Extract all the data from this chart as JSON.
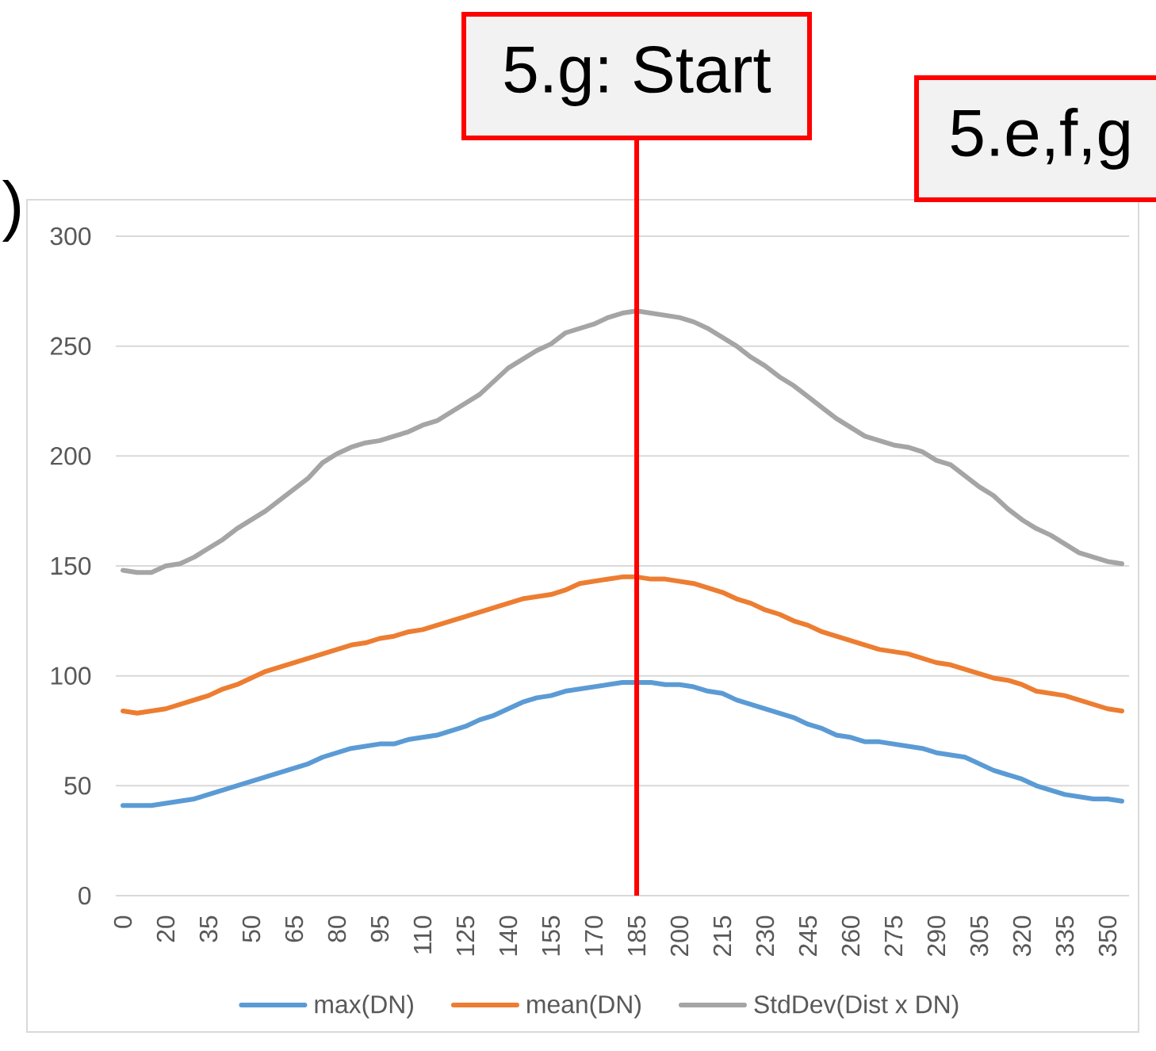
{
  "chart_data": {
    "type": "line",
    "categories": [
      "0",
      null,
      null,
      "20",
      null,
      null,
      "35",
      null,
      null,
      "50",
      null,
      null,
      "65",
      null,
      null,
      "80",
      null,
      null,
      "95",
      null,
      null,
      "110",
      null,
      null,
      "125",
      null,
      null,
      "140",
      null,
      null,
      "155",
      null,
      null,
      "170",
      null,
      null,
      "185",
      null,
      null,
      "200",
      null,
      null,
      "215",
      null,
      null,
      "230",
      null,
      null,
      "245",
      null,
      null,
      "260",
      null,
      null,
      "275",
      null,
      null,
      "290",
      null,
      null,
      "305",
      null,
      null,
      "320",
      null,
      null,
      "335",
      null,
      null,
      "350",
      null
    ],
    "series": [
      {
        "name": "max(DN)",
        "color": "#5b9bd5",
        "values": [
          41,
          41,
          41,
          42,
          43,
          44,
          46,
          48,
          50,
          52,
          54,
          56,
          58,
          60,
          63,
          65,
          67,
          68,
          69,
          69,
          71,
          72,
          73,
          75,
          77,
          80,
          82,
          85,
          88,
          90,
          91,
          93,
          94,
          95,
          96,
          97,
          97,
          97,
          96,
          96,
          95,
          93,
          92,
          89,
          87,
          85,
          83,
          81,
          78,
          76,
          73,
          72,
          70,
          70,
          69,
          68,
          67,
          65,
          64,
          63,
          60,
          57,
          55,
          53,
          50,
          48,
          46,
          45,
          44,
          44,
          43
        ]
      },
      {
        "name": "mean(DN)",
        "color": "#ed7d31",
        "values": [
          84,
          83,
          84,
          85,
          87,
          89,
          91,
          94,
          96,
          99,
          102,
          104,
          106,
          108,
          110,
          112,
          114,
          115,
          117,
          118,
          120,
          121,
          123,
          125,
          127,
          129,
          131,
          133,
          135,
          136,
          137,
          139,
          142,
          143,
          144,
          145,
          145,
          144,
          144,
          143,
          142,
          140,
          138,
          135,
          133,
          130,
          128,
          125,
          123,
          120,
          118,
          116,
          114,
          112,
          111,
          110,
          108,
          106,
          105,
          103,
          101,
          99,
          98,
          96,
          93,
          92,
          91,
          89,
          87,
          85,
          84
        ]
      },
      {
        "name": "StdDev(Dist x DN)",
        "color": "#a5a5a5",
        "values": [
          148,
          147,
          147,
          150,
          151,
          154,
          158,
          162,
          167,
          171,
          175,
          180,
          185,
          190,
          197,
          201,
          204,
          206,
          207,
          209,
          211,
          214,
          216,
          220,
          224,
          228,
          234,
          240,
          244,
          248,
          251,
          256,
          258,
          260,
          263,
          265,
          266,
          265,
          264,
          263,
          261,
          258,
          254,
          250,
          245,
          241,
          236,
          232,
          227,
          222,
          217,
          213,
          209,
          207,
          205,
          204,
          202,
          198,
          196,
          191,
          186,
          182,
          176,
          171,
          167,
          164,
          160,
          156,
          154,
          152,
          151
        ]
      }
    ],
    "ylim": [
      0,
      300
    ],
    "yticks": [
      0,
      50,
      100,
      150,
      200,
      250,
      300
    ],
    "grid": "y",
    "legend": "bottom",
    "marker": "none",
    "line_style": "solid",
    "ref_lines": [
      {
        "axis": "x",
        "value": "185",
        "label": "5.g: Start",
        "color": "#ff0000"
      }
    ],
    "annotations": [
      "5.e,f,g",
      ")"
    ]
  }
}
